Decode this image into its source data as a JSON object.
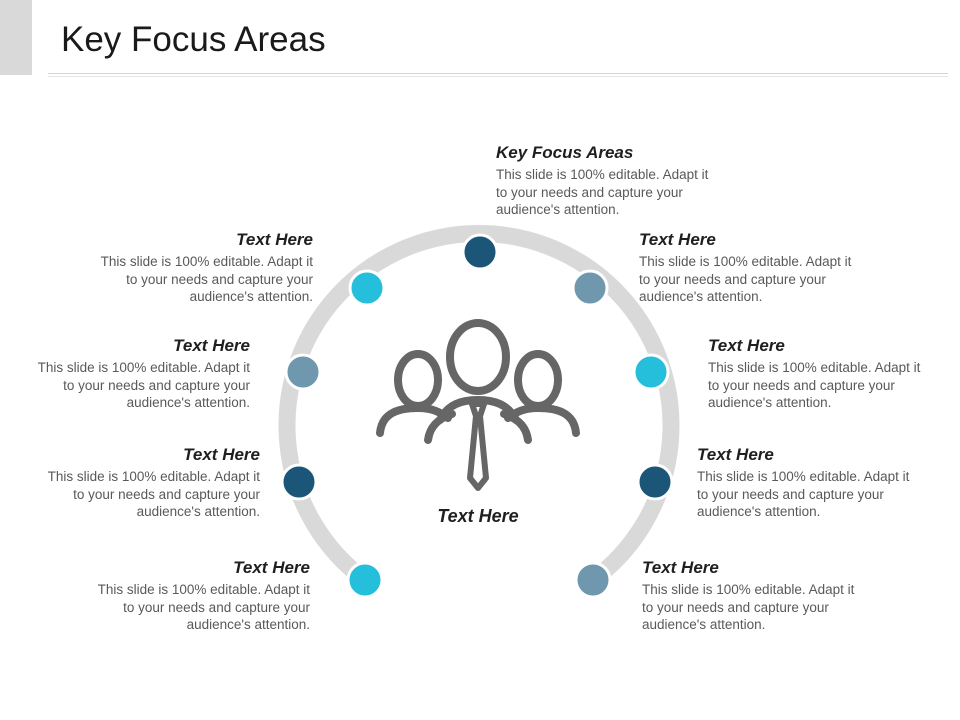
{
  "title": "Key Focus Areas",
  "colors": {
    "ring": "#d9d9d9",
    "dark_blue": "#1b5577",
    "cyan": "#25bedb",
    "grey_blue": "#6f97ad",
    "icon": "#666666"
  },
  "center_label": "Text Here",
  "center_icon": "people-group-icon",
  "items": [
    {
      "heading": "Key Focus Areas",
      "body": "This slide is 100% editable. Adapt it to your needs and capture your audience's attention."
    },
    {
      "heading": "Text Here",
      "body": "This slide is 100% editable. Adapt it to your needs and capture your audience's attention."
    },
    {
      "heading": "Text Here",
      "body": "This slide is 100% editable. Adapt it to your needs and capture your audience's attention."
    },
    {
      "heading": "Text Here",
      "body": "This slide is 100% editable. Adapt it to your needs and capture your audience's attention."
    },
    {
      "heading": "Text Here",
      "body": "This slide is 100% editable. Adapt it to your needs and capture your audience's attention."
    },
    {
      "heading": "Text Here",
      "body": "This slide is 100% editable. Adapt it to your needs and capture your audience's attention."
    },
    {
      "heading": "Text Here",
      "body": "This slide is 100% editable. Adapt it to your needs and capture your audience's attention."
    },
    {
      "heading": "Text Here",
      "body": "This slide is 100% editable. Adapt it to your needs and capture your audience's attention."
    },
    {
      "heading": "Text Here",
      "body": "This slide is 100% editable. Adapt it to your needs and capture your audience's attention."
    }
  ]
}
